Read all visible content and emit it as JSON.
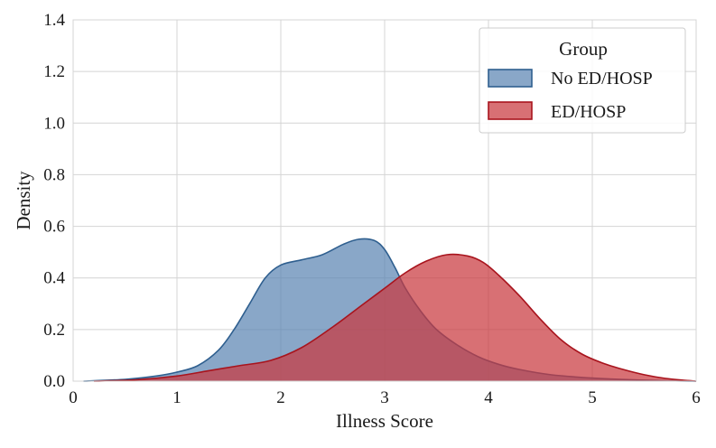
{
  "chart_data": {
    "type": "area",
    "title": "",
    "xlabel": "Illness Score",
    "ylabel": "Density",
    "xlim": [
      0,
      6
    ],
    "ylim": [
      0,
      1.4
    ],
    "x_ticks": [
      "0",
      "1",
      "2",
      "3",
      "4",
      "5",
      "6"
    ],
    "y_ticks": [
      "0.0",
      "0.2",
      "0.4",
      "0.6",
      "0.8",
      "1.0",
      "1.2",
      "1.4"
    ],
    "grid": true,
    "legend": {
      "title": "Group",
      "position": "top-right",
      "entries": [
        "No ED/HOSP",
        "ED/HOSP"
      ]
    },
    "series": [
      {
        "name": "No ED/HOSP",
        "fill": "#5b85b3",
        "stroke": "#2f5f8f",
        "x": [
          0.1,
          0.5,
          0.8,
          1.0,
          1.2,
          1.4,
          1.55,
          1.7,
          1.85,
          2.0,
          2.2,
          2.4,
          2.6,
          2.75,
          2.9,
          3.0,
          3.1,
          3.2,
          3.35,
          3.5,
          3.7,
          3.9,
          4.1,
          4.3,
          4.6,
          5.0,
          5.4,
          5.8,
          6.0
        ],
        "y": [
          0.0,
          0.007,
          0.02,
          0.035,
          0.06,
          0.12,
          0.2,
          0.3,
          0.4,
          0.45,
          0.47,
          0.49,
          0.53,
          0.55,
          0.545,
          0.51,
          0.44,
          0.36,
          0.27,
          0.2,
          0.14,
          0.095,
          0.065,
          0.045,
          0.025,
          0.012,
          0.005,
          0.001,
          0.0
        ]
      },
      {
        "name": "ED/HOSP",
        "fill": "#c9393f",
        "stroke": "#a8141d",
        "x": [
          0.2,
          0.6,
          1.0,
          1.3,
          1.6,
          1.9,
          2.2,
          2.5,
          2.8,
          3.0,
          3.2,
          3.4,
          3.6,
          3.8,
          3.95,
          4.1,
          4.3,
          4.5,
          4.7,
          4.9,
          5.1,
          5.3,
          5.5,
          5.7,
          5.9,
          6.0
        ],
        "y": [
          0.0,
          0.005,
          0.02,
          0.04,
          0.06,
          0.08,
          0.13,
          0.21,
          0.3,
          0.36,
          0.42,
          0.465,
          0.49,
          0.485,
          0.46,
          0.41,
          0.33,
          0.24,
          0.16,
          0.105,
          0.07,
          0.045,
          0.025,
          0.011,
          0.003,
          0.0
        ]
      }
    ]
  }
}
